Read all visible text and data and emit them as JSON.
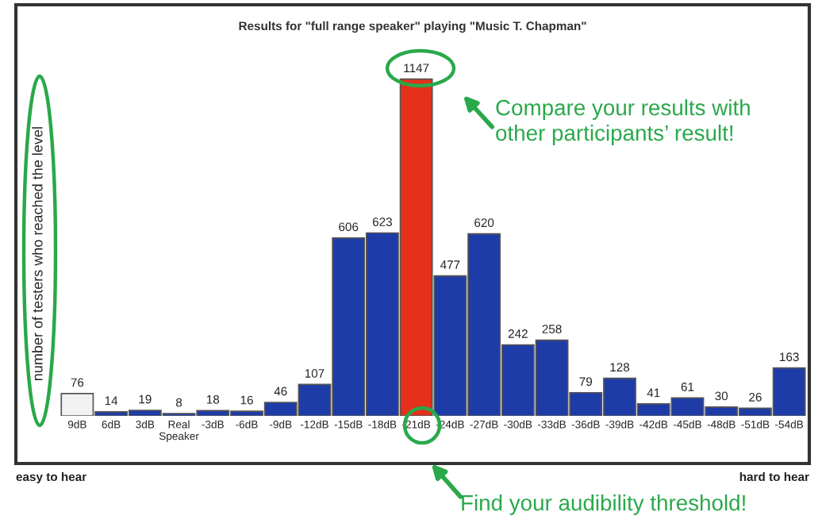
{
  "chart_data": {
    "type": "bar",
    "title": "Results for \"full range speaker\" playing \"Music T. Chapman\"",
    "ylabel": "number of testers who reached the level",
    "categories": [
      "9dB",
      "6dB",
      "3dB",
      "Real\nSpeaker",
      "-3dB",
      "-6dB",
      "-9dB",
      "-12dB",
      "-15dB",
      "-18dB",
      "-21dB",
      "-24dB",
      "-27dB",
      "-30dB",
      "-33dB",
      "-36dB",
      "-39dB",
      "-42dB",
      "-45dB",
      "-48dB",
      "-51dB",
      "-54dB"
    ],
    "values": [
      76,
      14,
      19,
      8,
      18,
      16,
      46,
      107,
      606,
      623,
      1147,
      477,
      620,
      242,
      258,
      79,
      128,
      41,
      61,
      30,
      26,
      163
    ],
    "colors": [
      "#f2f2f2",
      "#1e3ca8",
      "#1e3ca8",
      "#1e3ca8",
      "#1e3ca8",
      "#1e3ca8",
      "#1e3ca8",
      "#1e3ca8",
      "#1e3ca8",
      "#1e3ca8",
      "#e5301c",
      "#1e3ca8",
      "#1e3ca8",
      "#1e3ca8",
      "#1e3ca8",
      "#1e3ca8",
      "#1e3ca8",
      "#1e3ca8",
      "#1e3ca8",
      "#1e3ca8",
      "#1e3ca8",
      "#1e3ca8"
    ],
    "data_labels": true,
    "grid": false,
    "legend": false,
    "annotations": [
      "easy to hear",
      "hard to hear",
      "Compare your results with\nother participants’ result!",
      "Find your audibility threshold!"
    ]
  }
}
